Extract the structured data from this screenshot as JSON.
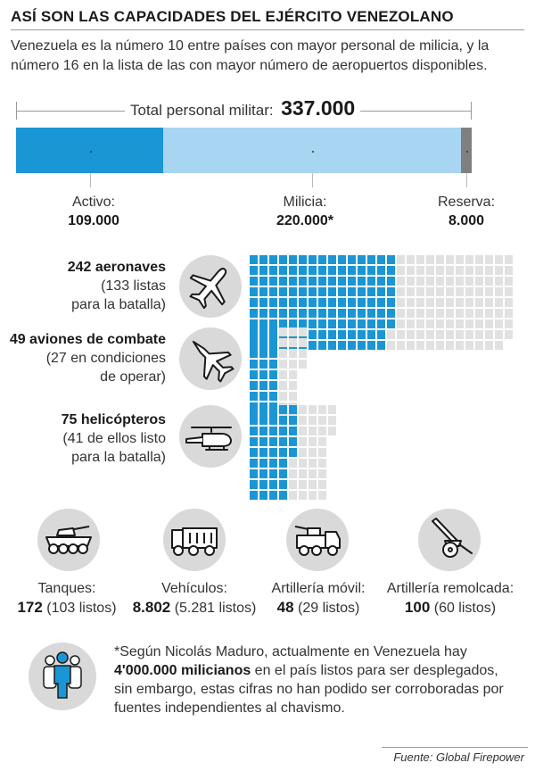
{
  "title": "ASÍ SON LAS CAPACIDADES DEL EJÉRCITO VENEZOLANO",
  "subtitle": "Venezuela es la número 10 entre países con mayor personal de milicia, y la número 16 en la lista de las con mayor número de aeropuertos disponibles.",
  "colors": {
    "active": "#1a96d4",
    "militia": "#a8d5f1",
    "reserve": "#7f7f7f",
    "ready": "#1a96d4",
    "not_ready": "#e1e1e1",
    "circle": "#d9d9d9"
  },
  "chart_data": [
    {
      "type": "bar",
      "stacked": true,
      "title": "Total personal militar:",
      "total_label": "337.000",
      "total": 337000,
      "segments": [
        {
          "name": "Activo:",
          "value": 109000,
          "value_label": "109.000"
        },
        {
          "name": "Milicia:",
          "value": 220000,
          "value_label": "220.000*"
        },
        {
          "name": "Reserva:",
          "value": 8000,
          "value_label": "8.000"
        }
      ]
    },
    {
      "type": "waffle",
      "rows": [
        {
          "name": "aircraft",
          "count_label": "242 aeronaves",
          "detail_lines": [
            "(133 listas",
            "para la batalla)"
          ],
          "total": 242,
          "ready": 133,
          "icon": "airplane-icon"
        },
        {
          "name": "combat",
          "count_label": "49 aviones de combate",
          "detail_lines": [
            "(27 en condiciones",
            "de operar)"
          ],
          "total": 49,
          "ready": 27,
          "icon": "fighter-jet-icon"
        },
        {
          "name": "helicopters",
          "count_label": "75 helicópteros",
          "detail_lines": [
            "(41 de ellos listo",
            "para la batalla)"
          ],
          "total": 75,
          "ready": 41,
          "icon": "helicopter-icon"
        }
      ]
    },
    {
      "type": "table",
      "items": [
        {
          "label": "Tanques:",
          "value": "172",
          "ready": "(103 listos)",
          "icon": "tank-icon"
        },
        {
          "label": "Vehículos:",
          "value": "8.802",
          "ready": "(5.281 listos)",
          "icon": "truck-icon"
        },
        {
          "label": "Artillería móvil:",
          "value": "48",
          "ready": "(29 listos)",
          "icon": "mobile-artillery-icon"
        },
        {
          "label": "Artillería remolcada:",
          "value": "100",
          "ready": "(60 listos)",
          "icon": "towed-artillery-icon"
        }
      ]
    }
  ],
  "note": {
    "icon": "people-icon",
    "line1": "*Según Nicolás Maduro, actualmente en Venezuela hay",
    "bold": "4'000.000 milicianos",
    "rest_line2": " en el país listos para ser desplegados,",
    "line3": "sin embargo, estas cifras no han podido ser corroboradas por",
    "line4": "fuentes independientes al chavismo."
  },
  "source": "Fuente: Global Firepower"
}
